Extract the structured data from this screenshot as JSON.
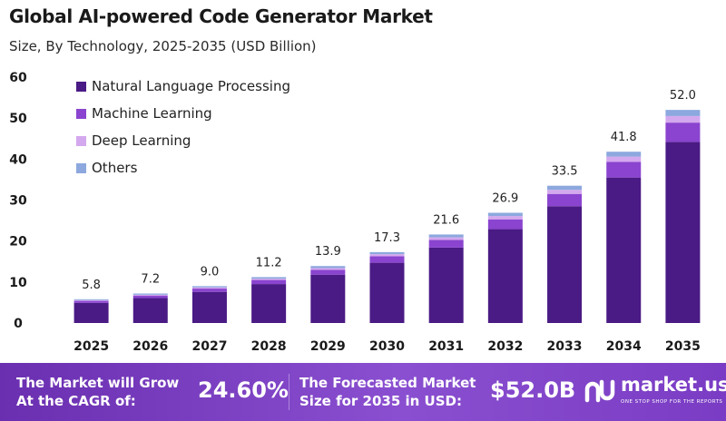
{
  "header": {
    "title": "Global AI-powered Code Generator Market",
    "subtitle": "Size, By Technology, 2025-2035 (USD Billion)"
  },
  "chart_data": {
    "type": "bar",
    "stacked": true,
    "categories": [
      "2025",
      "2026",
      "2027",
      "2028",
      "2029",
      "2030",
      "2031",
      "2032",
      "2033",
      "2034",
      "2035"
    ],
    "totals": [
      5.8,
      7.2,
      9.0,
      11.2,
      13.9,
      17.3,
      21.6,
      26.9,
      33.5,
      41.8,
      52.0
    ],
    "total_labels": [
      "5.8",
      "7.2",
      "9.0",
      "11.2",
      "13.9",
      "17.3",
      "21.6",
      "26.9",
      "33.5",
      "41.8",
      "52.0"
    ],
    "series": [
      {
        "name": "Natural Language Processing",
        "color": "#4a1a85",
        "values": [
          4.9,
          6.1,
          7.6,
          9.5,
          11.8,
          14.7,
          18.4,
          22.9,
          28.5,
          35.5,
          44.2
        ]
      },
      {
        "name": "Machine Learning",
        "color": "#8a44cf",
        "values": [
          0.5,
          0.6,
          0.8,
          1.0,
          1.2,
          1.6,
          1.9,
          2.4,
          3.0,
          3.8,
          4.7
        ]
      },
      {
        "name": "Deep Learning",
        "color": "#d4a8ee",
        "values": [
          0.2,
          0.2,
          0.3,
          0.3,
          0.4,
          0.5,
          0.6,
          0.8,
          1.0,
          1.3,
          1.6
        ]
      },
      {
        "name": "Others",
        "color": "#8ca8de",
        "values": [
          0.2,
          0.3,
          0.3,
          0.4,
          0.5,
          0.5,
          0.7,
          0.8,
          1.0,
          1.2,
          1.5
        ]
      }
    ],
    "ylim": [
      0,
      60
    ],
    "yticks": [
      "0",
      "10",
      "20",
      "30",
      "40",
      "50",
      "60"
    ],
    "grid": false,
    "legend_position": "top-left"
  },
  "footer": {
    "growth_label": "The Market will Grow At the CAGR of:",
    "cagr_value": "24.60%",
    "forecast_label": "The Forecasted Market Size for 2035 in USD:",
    "forecast_value": "$52.0B",
    "brand_name": "market.us",
    "brand_tagline": "ONE STOP SHOP FOR THE REPORTS",
    "brand_color": "#7b3fbf"
  }
}
